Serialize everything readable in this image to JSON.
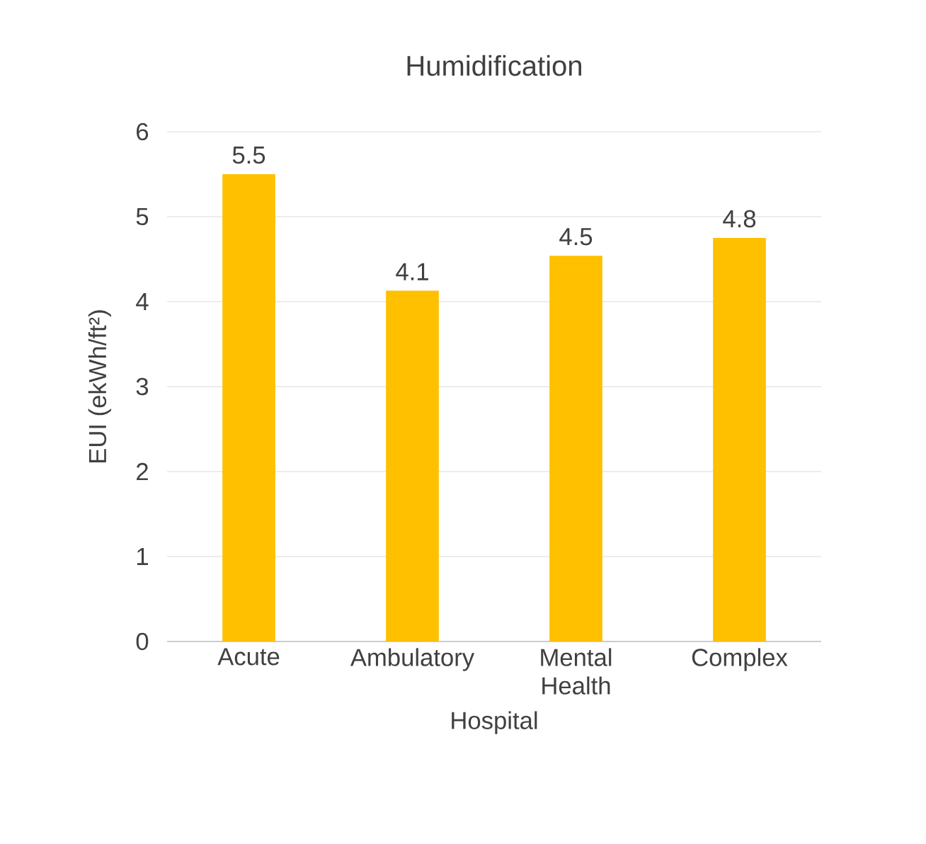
{
  "chart_data": {
    "type": "bar",
    "title": "Humidification",
    "xlabel": "Hospital",
    "ylabel": "EUI (ekWh/ft²)",
    "categories": [
      "Acute",
      "Ambulatory",
      "Mental Health",
      "Complex"
    ],
    "values": [
      5.5,
      4.13,
      4.54,
      4.75
    ],
    "color": "#ffc000",
    "value_labels": [
      "5.5",
      "4.1",
      "4.5",
      "4.8"
    ],
    "ylim": [
      0,
      6
    ],
    "yticks": [
      0,
      1,
      2,
      3,
      4,
      5,
      6
    ],
    "grid": "y"
  }
}
